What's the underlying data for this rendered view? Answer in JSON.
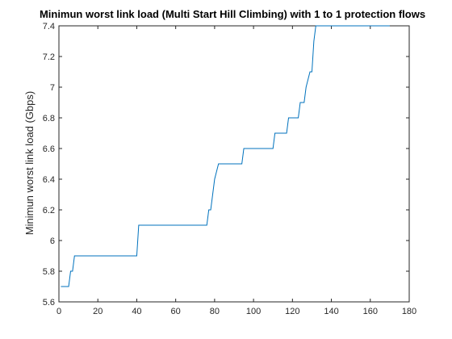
{
  "chart_data": {
    "type": "line",
    "title": "Minimun worst link load (Multi Start Hill Climbing) with 1 to 1 protection flows",
    "xlabel": "",
    "ylabel": "Minimun worst link load (Gbps)",
    "xlim": [
      0,
      180
    ],
    "ylim": [
      5.6,
      7.4
    ],
    "xticks": [
      0,
      20,
      40,
      60,
      80,
      100,
      120,
      140,
      160,
      180
    ],
    "xtick_labels": [
      "0",
      "20",
      "40",
      "60",
      "80",
      "100",
      "120",
      "140",
      "160",
      "180"
    ],
    "yticks": [
      5.6,
      5.8,
      6,
      6.2,
      6.4,
      6.6,
      6.8,
      7,
      7.2,
      7.4
    ],
    "ytick_labels": [
      "5.6",
      "5.8",
      "6",
      "6.2",
      "6.4",
      "6.6",
      "6.8",
      "7",
      "7.2",
      "7.4"
    ],
    "grid": false,
    "series": [
      {
        "color": "#0072BD",
        "x": [
          1,
          5,
          6,
          7,
          8,
          40,
          41,
          76,
          77,
          78,
          80,
          82,
          94,
          95,
          110,
          111,
          117,
          118,
          123,
          124,
          126,
          127,
          129,
          130,
          131,
          132,
          170
        ],
        "y": [
          5.7,
          5.7,
          5.8,
          5.8,
          5.9,
          5.9,
          6.1,
          6.1,
          6.2,
          6.2,
          6.4,
          6.5,
          6.5,
          6.6,
          6.6,
          6.7,
          6.7,
          6.8,
          6.8,
          6.9,
          6.9,
          7.0,
          7.1,
          7.1,
          7.3,
          7.4,
          7.4
        ]
      }
    ]
  }
}
